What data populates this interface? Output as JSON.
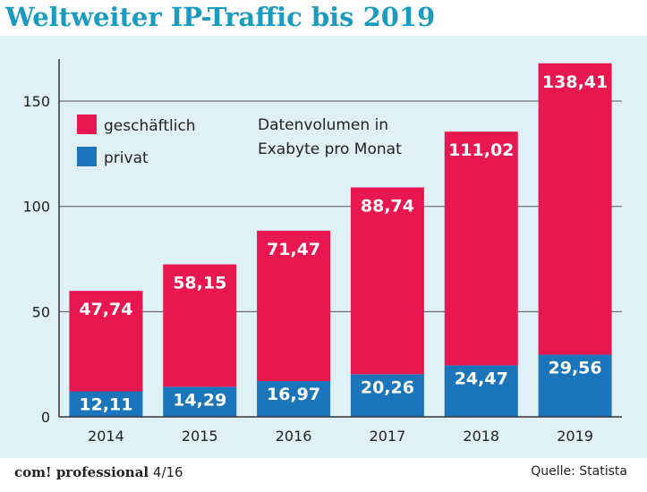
{
  "title": "Weltweiter IP-Traffic bis 2019",
  "annotation_lines": [
    "Datenvolumen in",
    "Exabyte pro Monat"
  ],
  "footer": {
    "brand": "com! professional",
    "issue": "4/16",
    "source": "Quelle: Statista"
  },
  "colors": {
    "title": "#1a9bbf",
    "geschaeftlich": "#e8174f",
    "privat": "#1b75bb",
    "background": "#dff0f7"
  },
  "chart_data": {
    "type": "bar",
    "stacked": true,
    "categories": [
      "2014",
      "2015",
      "2016",
      "2017",
      "2018",
      "2019"
    ],
    "series": [
      {
        "name": "privat",
        "values": [
          12.11,
          14.29,
          16.97,
          20.26,
          24.47,
          29.56
        ],
        "labels": [
          "12,11",
          "14,29",
          "16,97",
          "20,26",
          "24,47",
          "29,56"
        ]
      },
      {
        "name": "geschäftlich",
        "values": [
          47.74,
          58.15,
          71.47,
          88.74,
          111.02,
          138.41
        ],
        "labels": [
          "47,74",
          "58,15",
          "71,47",
          "88,74",
          "111,02",
          "138,41"
        ]
      }
    ],
    "ylim": [
      0,
      170
    ],
    "yticks": [
      0,
      50,
      100,
      150
    ],
    "ytick_labels": [
      "0",
      "50",
      "100",
      "150"
    ],
    "grid": true,
    "legend_position": "top-left"
  }
}
